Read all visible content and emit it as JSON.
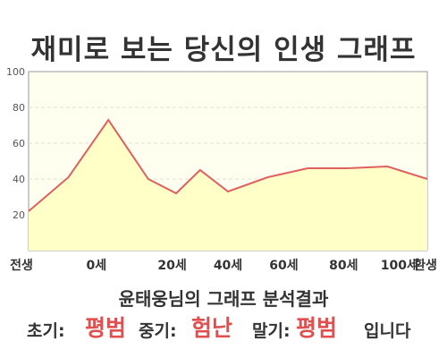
{
  "header": {
    "title": "재미로 보는 당신의 인생 그래프"
  },
  "chart_data": {
    "type": "area",
    "x": [
      0,
      10,
      20,
      30,
      37,
      43,
      50,
      60,
      70,
      80,
      90,
      100
    ],
    "y": [
      22,
      41,
      73,
      40,
      32,
      45,
      33,
      41,
      46,
      46,
      47,
      40
    ],
    "ylim": [
      0,
      100
    ],
    "yticks": [
      20,
      40,
      60,
      80,
      100
    ],
    "xtick_labels": [
      {
        "x": 0,
        "label": "전생"
      },
      {
        "x": 17,
        "label": "0세"
      },
      {
        "x": 36,
        "label": "20세"
      },
      {
        "x": 50,
        "label": "40세"
      },
      {
        "x": 64,
        "label": "60세"
      },
      {
        "x": 79,
        "label": "80세"
      },
      {
        "x": 93,
        "label": "100세"
      },
      {
        "x": 103,
        "label": "환생"
      }
    ],
    "grid": true,
    "colors": {
      "line": "#e06060",
      "fill": "#ffffc8",
      "plot_bg": "#fffff0"
    }
  },
  "summary": {
    "text": "윤태웅님의 그래프 분석결과"
  },
  "result": {
    "early_label": "초기:",
    "early_value": "평범",
    "mid_label": "중기:",
    "mid_value": "험난",
    "late_label": "말기:",
    "late_value": "평범",
    "ending": "입니다"
  }
}
